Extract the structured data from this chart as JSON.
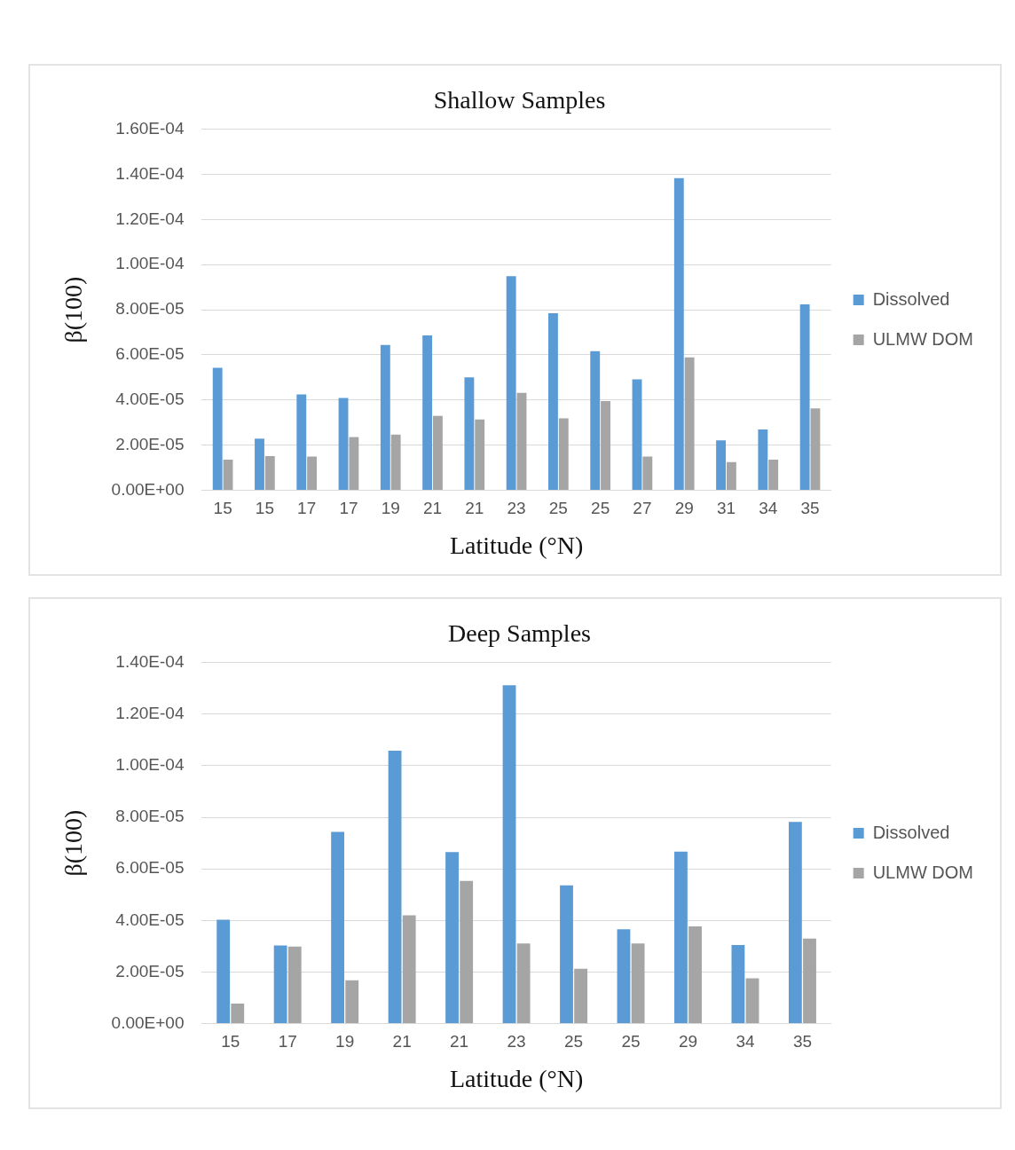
{
  "chart_data": [
    {
      "type": "bar",
      "title": "Shallow Samples",
      "xlabel": "Latitude (°N)",
      "ylabel": "β(100)",
      "categories": [
        "15",
        "15",
        "17",
        "17",
        "19",
        "21",
        "21",
        "23",
        "25",
        "25",
        "27",
        "29",
        "31",
        "34",
        "35"
      ],
      "series": [
        {
          "name": "Dissolved",
          "color": "#5b9bd5",
          "values": [
            5.43e-05,
            2.29e-05,
            4.25e-05,
            4.09e-05,
            6.44e-05,
            6.86e-05,
            5.01e-05,
            9.49e-05,
            7.85e-05,
            6.17e-05,
            4.92e-05,
            0.0001383,
            2.22e-05,
            2.7e-05,
            8.24e-05
          ]
        },
        {
          "name": "ULMW DOM",
          "color": "#a5a5a5",
          "values": [
            1.36e-05,
            1.52e-05,
            1.5e-05,
            2.36e-05,
            2.47e-05,
            3.3e-05,
            3.14e-05,
            4.32e-05,
            3.19e-05,
            3.95e-05,
            1.5e-05,
            5.89e-05,
            1.25e-05,
            1.36e-05,
            3.63e-05
          ]
        }
      ],
      "ylim": [
        0,
        0.00016
      ],
      "yticks": [
        {
          "value": 0,
          "label": "0.00E+00"
        },
        {
          "value": 2e-05,
          "label": "2.00E-05"
        },
        {
          "value": 4e-05,
          "label": "4.00E-05"
        },
        {
          "value": 6e-05,
          "label": "6.00E-05"
        },
        {
          "value": 8e-05,
          "label": "8.00E-05"
        },
        {
          "value": 0.0001,
          "label": "1.00E-04"
        },
        {
          "value": 0.00012,
          "label": "1.20E-04"
        },
        {
          "value": 0.00014,
          "label": "1.40E-04"
        },
        {
          "value": 0.00016,
          "label": "1.60E-04"
        }
      ],
      "grid": "y",
      "legend": "right"
    },
    {
      "type": "bar",
      "title": "Deep Samples",
      "xlabel": "Latitude (°N)",
      "ylabel": "β(100)",
      "categories": [
        "15",
        "17",
        "19",
        "21",
        "21",
        "23",
        "25",
        "25",
        "29",
        "34",
        "35"
      ],
      "series": [
        {
          "name": "Dissolved",
          "color": "#5b9bd5",
          "values": [
            4.03e-05,
            3.03e-05,
            7.43e-05,
            0.0001058,
            6.65e-05,
            0.0001312,
            5.36e-05,
            3.66e-05,
            6.67e-05,
            3.05e-05,
            7.82e-05
          ]
        },
        {
          "name": "ULMW DOM",
          "color": "#a5a5a5",
          "values": [
            7.8e-06,
            2.99e-05,
            1.68e-05,
            4.2e-05,
            5.53e-05,
            3.11e-05,
            2.13e-05,
            3.11e-05,
            3.77e-05,
            1.76e-05,
            3.3e-05
          ]
        }
      ],
      "ylim": [
        0,
        0.00014
      ],
      "yticks": [
        {
          "value": 0,
          "label": "0.00E+00"
        },
        {
          "value": 2e-05,
          "label": "2.00E-05"
        },
        {
          "value": 4e-05,
          "label": "4.00E-05"
        },
        {
          "value": 6e-05,
          "label": "6.00E-05"
        },
        {
          "value": 8e-05,
          "label": "8.00E-05"
        },
        {
          "value": 0.0001,
          "label": "1.00E-04"
        },
        {
          "value": 0.00012,
          "label": "1.20E-04"
        },
        {
          "value": 0.00014,
          "label": "1.40E-04"
        }
      ],
      "grid": "y",
      "legend": "right"
    }
  ]
}
